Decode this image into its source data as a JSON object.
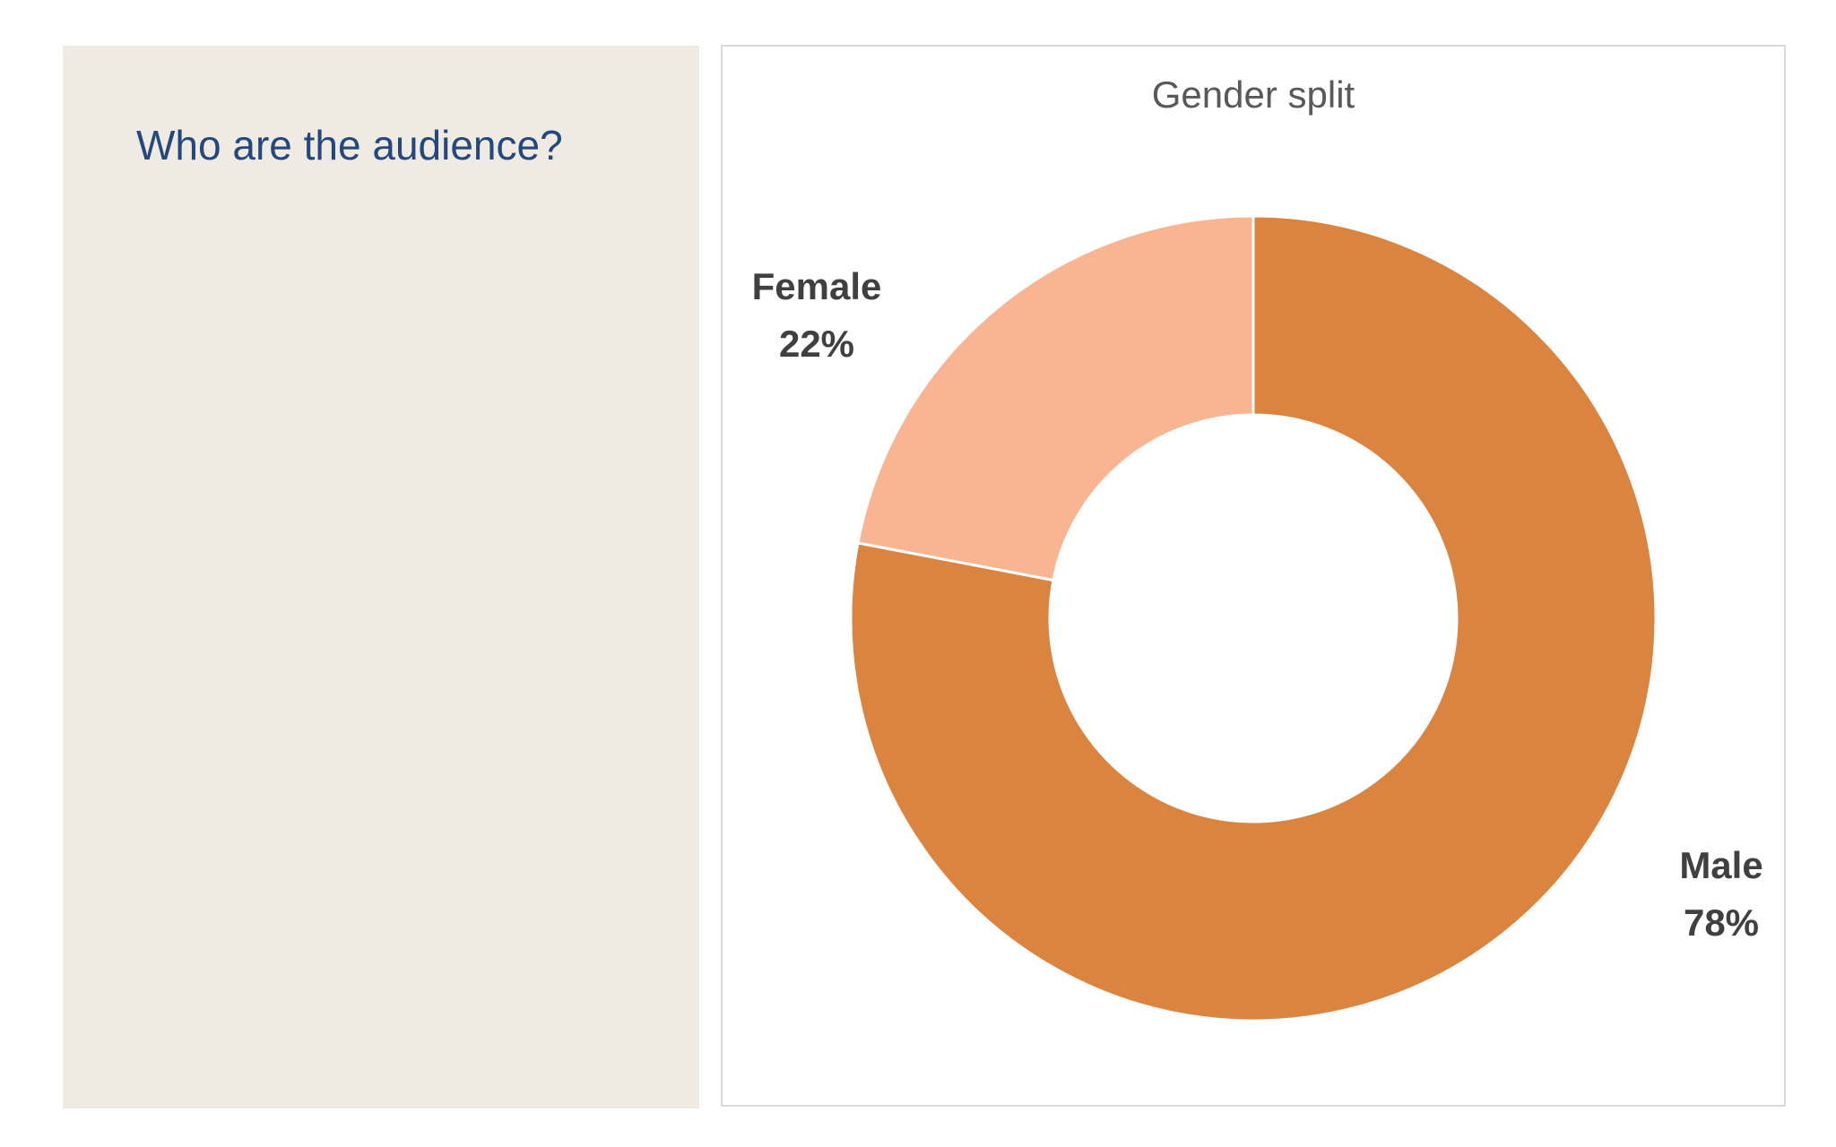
{
  "slide": {
    "heading": "Who are the audience?"
  },
  "chart_data": {
    "type": "pie",
    "variant": "donut",
    "title": "Gender split",
    "categories": [
      "Female",
      "Male"
    ],
    "values": [
      22,
      78
    ],
    "labels": [
      {
        "name": "Female",
        "percent": "22%"
      },
      {
        "name": "Male",
        "percent": "78%"
      }
    ],
    "colors": [
      "#f9b591",
      "#db843f"
    ],
    "legend": "none"
  },
  "colors": {
    "panel_background": "#efebe2",
    "heading_text": "#24487e",
    "title_text": "#595959",
    "label_text": "#404040",
    "frame_border": "#d9d9d9"
  }
}
